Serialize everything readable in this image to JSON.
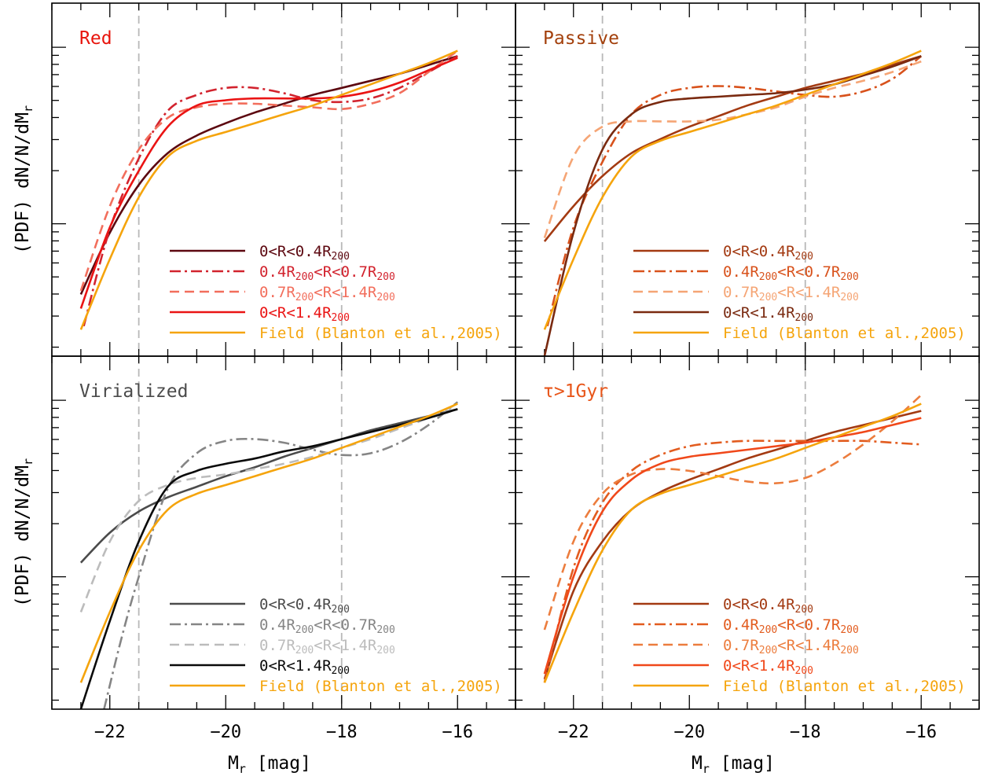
{
  "chart_data": [
    {
      "type": "line",
      "title": "Red",
      "title_color": "#e8140c",
      "xlabel": "M_r [mag]",
      "ylabel": "(PDF) dN/N/dM_r",
      "xlim": [
        -23,
        -15
      ],
      "x_reversed": false,
      "y_scale": "log",
      "ylim_log10": [
        -0.75,
        1.25
      ],
      "grid": false,
      "legend_position": "bottom-right",
      "xticks": [
        -22,
        -20,
        -18,
        -16
      ],
      "xtick_labels": [
        "−22",
        "−20",
        "−18",
        "−16"
      ],
      "vlines": [
        -21.5,
        -18
      ],
      "series": [
        {
          "name": "0<R<0.4R",
          "name_sub": "200",
          "color": "#5c0810",
          "dash": "solid",
          "x": [
            -22.5,
            -22,
            -21.5,
            -21,
            -20.5,
            -20,
            -19.5,
            -19,
            -18.5,
            -18,
            -17.5,
            -17,
            -16.5,
            -16
          ],
          "y_log10": [
            -0.4,
            -0.05,
            0.22,
            0.4,
            0.5,
            0.57,
            0.63,
            0.68,
            0.73,
            0.77,
            0.81,
            0.85,
            0.9,
            0.95
          ]
        },
        {
          "name": "0.4R",
          "name_sub": "200",
          "name_mid": "<R<0.7R",
          "name_sub2": "200",
          "color": "#d2232e",
          "dash": "dashdot",
          "x": [
            -22.45,
            -22,
            -21.5,
            -21,
            -20.5,
            -20,
            -19.5,
            -19,
            -18.5,
            -18,
            -17.5,
            -17,
            -16.5,
            -16
          ],
          "y_log10": [
            -0.58,
            -0.03,
            0.37,
            0.64,
            0.73,
            0.77,
            0.77,
            0.74,
            0.7,
            0.69,
            0.71,
            0.77,
            0.86,
            0.95
          ]
        },
        {
          "name": "0.7R",
          "name_sub": "200",
          "name_mid": "<R<1.4R",
          "name_sub2": "200",
          "color": "#f26e5c",
          "dash": "dashed",
          "x": [
            -22.5,
            -22,
            -21.5,
            -21,
            -20.5,
            -20,
            -19.5,
            -19,
            -18.5,
            -18,
            -17.5,
            -17,
            -16.5,
            -16
          ],
          "y_log10": [
            -0.38,
            0.1,
            0.42,
            0.6,
            0.66,
            0.68,
            0.68,
            0.67,
            0.66,
            0.65,
            0.68,
            0.74,
            0.86,
            0.98
          ]
        },
        {
          "name": "0<R<1.4R",
          "name_sub": "200",
          "color": "#ea1414",
          "dash": "solid",
          "x": [
            -22.5,
            -22,
            -21.5,
            -21,
            -20.5,
            -20,
            -19.5,
            -19,
            -18.5,
            -18,
            -17.5,
            -17,
            -16.5,
            -16
          ],
          "y_log10": [
            -0.48,
            -0.02,
            0.3,
            0.55,
            0.67,
            0.7,
            0.71,
            0.71,
            0.71,
            0.72,
            0.75,
            0.8,
            0.87,
            0.94
          ]
        },
        {
          "name": "Field (Blanton et al.,2005)",
          "color": "#f5a40c",
          "dash": "solid",
          "x": [
            -22.5,
            -22,
            -21.5,
            -21,
            -20.5,
            -20,
            -19.5,
            -19,
            -18.5,
            -18,
            -17.5,
            -17,
            -16.5,
            -16
          ],
          "y_log10": [
            -0.6,
            -0.2,
            0.15,
            0.38,
            0.47,
            0.52,
            0.57,
            0.62,
            0.67,
            0.73,
            0.79,
            0.85,
            0.91,
            0.98
          ]
        }
      ]
    },
    {
      "type": "line",
      "title": "Passive",
      "title_color": "#a3400c",
      "xlabel": "M_r [mag]",
      "ylabel": "",
      "xlim": [
        -23,
        -15
      ],
      "x_reversed": false,
      "y_scale": "log",
      "ylim_log10": [
        -0.75,
        1.25
      ],
      "grid": false,
      "legend_position": "bottom-right",
      "xticks": [
        -22,
        -20,
        -18,
        -16
      ],
      "xtick_labels": [
        "−22",
        "−20",
        "−18",
        "−16"
      ],
      "vlines": [
        -21.5,
        -18
      ],
      "series": [
        {
          "name": "0<R<0.4R",
          "name_sub": "200",
          "color": "#a33a12",
          "dash": "solid",
          "x": [
            -22.5,
            -22,
            -21.5,
            -21,
            -20.5,
            -20,
            -19.5,
            -19,
            -18.5,
            -18,
            -17.5,
            -17,
            -16.5,
            -16
          ],
          "y_log10": [
            -0.1,
            0.1,
            0.27,
            0.4,
            0.48,
            0.55,
            0.61,
            0.67,
            0.72,
            0.77,
            0.81,
            0.85,
            0.9,
            0.95
          ]
        },
        {
          "name": "0.4R",
          "name_sub": "200",
          "name_mid": "<R<0.7R",
          "name_sub2": "200",
          "color": "#d8521c",
          "dash": "dashdot",
          "x": [
            -22.45,
            -22,
            -21.5,
            -21,
            -20.5,
            -20,
            -19.5,
            -19,
            -18.5,
            -18,
            -17.5,
            -17,
            -16.5,
            -16
          ],
          "y_log10": [
            -0.58,
            -0.02,
            0.35,
            0.62,
            0.73,
            0.77,
            0.78,
            0.77,
            0.75,
            0.73,
            0.72,
            0.75,
            0.82,
            0.95
          ]
        },
        {
          "name": "0.7R",
          "name_sub": "200",
          "name_mid": "<R<1.4R",
          "name_sub2": "200",
          "color": "#f5a575",
          "dash": "dashed",
          "x": [
            -22.5,
            -22,
            -21.5,
            -21,
            -20.5,
            -20,
            -19.5,
            -19,
            -18.5,
            -18,
            -17.5,
            -17,
            -16.5,
            -16
          ],
          "y_log10": [
            -0.08,
            0.38,
            0.55,
            0.58,
            0.58,
            0.58,
            0.59,
            0.62,
            0.66,
            0.72,
            0.77,
            0.81,
            0.86,
            0.92
          ]
        },
        {
          "name": "0<R<1.4R",
          "name_sub": "200",
          "color": "#7a2a10",
          "dash": "solid",
          "x": [
            -22.5,
            -22,
            -21.5,
            -21,
            -20.5,
            -20,
            -19.5,
            -19,
            -18.5,
            -18,
            -17.5,
            -17,
            -16.5,
            -16
          ],
          "y_log10": [
            -0.75,
            -0.05,
            0.42,
            0.62,
            0.69,
            0.71,
            0.72,
            0.73,
            0.74,
            0.76,
            0.79,
            0.84,
            0.89,
            0.95
          ]
        },
        {
          "name": "Field (Blanton et al.,2005)",
          "color": "#f5a40c",
          "dash": "solid",
          "x": [
            -22.5,
            -22,
            -21.5,
            -21,
            -20.5,
            -20,
            -19.5,
            -19,
            -18.5,
            -18,
            -17.5,
            -17,
            -16.5,
            -16
          ],
          "y_log10": [
            -0.6,
            -0.2,
            0.15,
            0.38,
            0.47,
            0.52,
            0.57,
            0.62,
            0.67,
            0.73,
            0.79,
            0.85,
            0.91,
            0.98
          ]
        }
      ]
    },
    {
      "type": "line",
      "title": "Virialized",
      "title_color": "#4b4b4b",
      "xlabel": "M_r [mag]",
      "ylabel": "(PDF) dN/N/dM_r",
      "xlim": [
        -23,
        -15
      ],
      "x_reversed": false,
      "y_scale": "log",
      "ylim_log10": [
        -0.75,
        1.25
      ],
      "grid": false,
      "legend_position": "bottom-right",
      "xticks": [
        -22,
        -20,
        -18,
        -16
      ],
      "xtick_labels": [
        "−22",
        "−20",
        "−18",
        "−16"
      ],
      "vlines": [
        -21.5,
        -18
      ],
      "series": [
        {
          "name": "0<R<0.4R",
          "name_sub": "200",
          "color": "#4b4b4b",
          "dash": "solid",
          "x": [
            -22.5,
            -22,
            -21.5,
            -21,
            -20.5,
            -20,
            -19.5,
            -19,
            -18.5,
            -18,
            -17.5,
            -17,
            -16.5,
            -16
          ],
          "y_log10": [
            0.08,
            0.25,
            0.37,
            0.45,
            0.51,
            0.57,
            0.62,
            0.68,
            0.73,
            0.78,
            0.83,
            0.87,
            0.91,
            0.95
          ]
        },
        {
          "name": "0.4R",
          "name_sub": "200",
          "name_mid": "<R<0.7R",
          "name_sub2": "200",
          "color": "#858585",
          "dash": "dashdot",
          "x": [
            -22.1,
            -21.8,
            -21.5,
            -21,
            -20.5,
            -20,
            -19.5,
            -19,
            -18.5,
            -18,
            -17.5,
            -17,
            -16.5,
            -16
          ],
          "y_log10": [
            -0.75,
            -0.35,
            0.0,
            0.5,
            0.7,
            0.77,
            0.78,
            0.76,
            0.72,
            0.69,
            0.7,
            0.76,
            0.86,
            0.99
          ]
        },
        {
          "name": "0.7R",
          "name_sub": "200",
          "name_mid": "<R<1.4R",
          "name_sub2": "200",
          "color": "#bcbcbc",
          "dash": "dashed",
          "x": [
            -22.5,
            -22,
            -21.5,
            -21,
            -20.5,
            -20,
            -19.5,
            -19,
            -18.5,
            -18,
            -17.5,
            -17,
            -16.5,
            -16
          ],
          "y_log10": [
            -0.2,
            0.2,
            0.43,
            0.52,
            0.56,
            0.58,
            0.61,
            0.64,
            0.68,
            0.73,
            0.78,
            0.84,
            0.9,
            0.98
          ]
        },
        {
          "name": "0<R<1.4R",
          "name_sub": "200",
          "color": "#0a0a0a",
          "dash": "solid",
          "x": [
            -22.5,
            -22,
            -21.5,
            -21,
            -20.5,
            -20,
            -19.5,
            -19,
            -18.5,
            -18,
            -17.5,
            -17,
            -16.5,
            -16
          ],
          "y_log10": [
            -0.75,
            -0.25,
            0.2,
            0.51,
            0.6,
            0.64,
            0.67,
            0.71,
            0.74,
            0.78,
            0.82,
            0.86,
            0.9,
            0.95
          ]
        },
        {
          "name": "Field (Blanton et al.,2005)",
          "color": "#f5a40c",
          "dash": "solid",
          "x": [
            -22.5,
            -22,
            -21.5,
            -21,
            -20.5,
            -20,
            -19.5,
            -19,
            -18.5,
            -18,
            -17.5,
            -17,
            -16.5,
            -16
          ],
          "y_log10": [
            -0.6,
            -0.2,
            0.15,
            0.38,
            0.47,
            0.52,
            0.57,
            0.62,
            0.67,
            0.73,
            0.79,
            0.85,
            0.91,
            0.98
          ]
        }
      ]
    },
    {
      "type": "line",
      "title": "τ>1Gyr",
      "title_color": "#e8561a",
      "xlabel": "M_r [mag]",
      "ylabel": "",
      "xlim": [
        -23,
        -15
      ],
      "x_reversed": false,
      "y_scale": "log",
      "ylim_log10": [
        -0.75,
        1.25
      ],
      "grid": false,
      "legend_position": "bottom-right",
      "xticks": [
        -22,
        -20,
        -18,
        -16
      ],
      "xtick_labels": [
        "−22",
        "−20",
        "−18",
        "−16"
      ],
      "vlines": [
        -21.5,
        -18
      ],
      "series": [
        {
          "name": "0<R<0.4R",
          "name_sub": "200",
          "color": "#a33a12",
          "dash": "solid",
          "x": [
            -22.5,
            -22,
            -21.5,
            -21,
            -20.5,
            -20,
            -19.5,
            -19,
            -18.5,
            -18,
            -17.5,
            -17,
            -16.5,
            -16
          ],
          "y_log10": [
            -0.58,
            -0.08,
            0.2,
            0.38,
            0.48,
            0.55,
            0.61,
            0.67,
            0.72,
            0.77,
            0.82,
            0.86,
            0.9,
            0.94
          ]
        },
        {
          "name": "0.4R",
          "name_sub": "200",
          "name_mid": "<R<0.7R",
          "name_sub2": "200",
          "color": "#e25c1f",
          "dash": "dashdot",
          "x": [
            -22.5,
            -22,
            -21.5,
            -21,
            -20.5,
            -20,
            -19.5,
            -19,
            -18.5,
            -18,
            -17.5,
            -17,
            -16.5,
            -16
          ],
          "y_log10": [
            -0.6,
            0.05,
            0.42,
            0.6,
            0.69,
            0.74,
            0.76,
            0.77,
            0.77,
            0.77,
            0.77,
            0.77,
            0.76,
            0.75
          ]
        },
        {
          "name": "0.7R",
          "name_sub": "200",
          "name_mid": "<R<1.4R",
          "name_sub2": "200",
          "color": "#ec7d3e",
          "dash": "dashed",
          "x": [
            -22.5,
            -22,
            -21.5,
            -21,
            -20.5,
            -20,
            -19.5,
            -19,
            -18.5,
            -18,
            -17.5,
            -17,
            -16.5,
            -16
          ],
          "y_log10": [
            -0.3,
            0.2,
            0.47,
            0.58,
            0.61,
            0.6,
            0.57,
            0.54,
            0.53,
            0.56,
            0.64,
            0.75,
            0.88,
            1.03
          ]
        },
        {
          "name": "0<R<1.4R",
          "name_sub": "200",
          "color": "#f0481a",
          "dash": "solid",
          "x": [
            -22.5,
            -22,
            -21.5,
            -21,
            -20.5,
            -20,
            -19.5,
            -19,
            -18.5,
            -18,
            -17.5,
            -17,
            -16.5,
            -16
          ],
          "y_log10": [
            -0.55,
            0.0,
            0.37,
            0.55,
            0.64,
            0.68,
            0.7,
            0.72,
            0.74,
            0.76,
            0.79,
            0.82,
            0.86,
            0.9
          ]
        },
        {
          "name": "Field (Blanton et al.,2005)",
          "color": "#f5a40c",
          "dash": "solid",
          "x": [
            -22.5,
            -22,
            -21.5,
            -21,
            -20.5,
            -20,
            -19.5,
            -19,
            -18.5,
            -18,
            -17.5,
            -17,
            -16.5,
            -16
          ],
          "y_log10": [
            -0.6,
            -0.2,
            0.15,
            0.38,
            0.47,
            0.52,
            0.57,
            0.62,
            0.67,
            0.73,
            0.79,
            0.85,
            0.91,
            0.98
          ]
        }
      ]
    }
  ],
  "reference_line_color": "#b8b8b8"
}
